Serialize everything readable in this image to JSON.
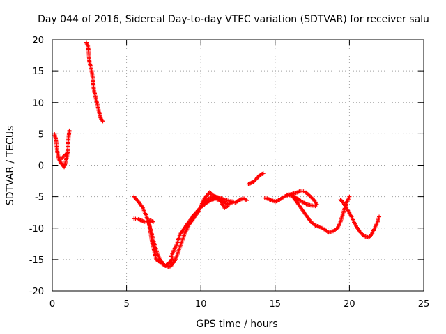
{
  "chart_data": {
    "type": "scatter",
    "title": "Day 044 of 2016, Sidereal Day-to-day VTEC variation (SDTVAR) for receiver salu",
    "xlabel": "GPS time / hours",
    "ylabel": "SDTVAR / TECUs",
    "xlim": [
      0,
      25
    ],
    "ylim": [
      -20,
      20
    ],
    "xticks": [
      0,
      5,
      10,
      15,
      20,
      25
    ],
    "yticks": [
      -20,
      -15,
      -10,
      -5,
      0,
      5,
      10,
      15,
      20
    ],
    "grid": true,
    "marker": "+",
    "marker_color": "#ff0000",
    "series": [
      {
        "name": "SDTVAR",
        "segments": [
          [
            [
              0.15,
              5.0
            ],
            [
              0.25,
              4.0
            ],
            [
              0.3,
              3.0
            ],
            [
              0.35,
              2.0
            ],
            [
              0.45,
              1.0
            ],
            [
              0.55,
              0.5
            ],
            [
              0.7,
              0.0
            ],
            [
              0.8,
              -0.3
            ],
            [
              0.9,
              0.5
            ],
            [
              1.0,
              1.5
            ],
            [
              1.05,
              3.0
            ],
            [
              1.1,
              4.5
            ],
            [
              1.15,
              5.5
            ]
          ],
          [
            [
              0.4,
              1.0
            ],
            [
              0.6,
              1.0
            ],
            [
              0.8,
              1.5
            ],
            [
              0.95,
              1.8
            ],
            [
              1.05,
              2.0
            ]
          ],
          [
            [
              2.3,
              19.5
            ],
            [
              2.4,
              19.0
            ],
            [
              2.45,
              18.0
            ],
            [
              2.5,
              16.5
            ],
            [
              2.65,
              15.0
            ],
            [
              2.75,
              13.5
            ],
            [
              2.8,
              12.0
            ],
            [
              2.9,
              11.0
            ],
            [
              3.0,
              10.0
            ],
            [
              3.1,
              9.0
            ],
            [
              3.2,
              8.0
            ],
            [
              3.3,
              7.3
            ],
            [
              3.4,
              7.0
            ]
          ],
          [
            [
              5.5,
              -5.0
            ],
            [
              5.8,
              -5.8
            ],
            [
              6.1,
              -6.8
            ],
            [
              6.4,
              -8.5
            ],
            [
              6.6,
              -10.0
            ],
            [
              6.8,
              -12.0
            ],
            [
              7.0,
              -13.5
            ],
            [
              7.2,
              -14.8
            ],
            [
              7.5,
              -15.8
            ],
            [
              7.8,
              -16.2
            ],
            [
              8.0,
              -16.0
            ],
            [
              8.3,
              -15.0
            ],
            [
              8.6,
              -13.0
            ],
            [
              8.9,
              -11.0
            ],
            [
              9.2,
              -9.5
            ],
            [
              9.5,
              -8.5
            ],
            [
              9.8,
              -7.5
            ],
            [
              10.0,
              -6.5
            ],
            [
              10.2,
              -5.5
            ],
            [
              10.4,
              -4.8
            ],
            [
              10.6,
              -4.3
            ],
            [
              10.8,
              -4.8
            ],
            [
              11.0,
              -5.0
            ],
            [
              11.3,
              -5.2
            ],
            [
              11.6,
              -5.5
            ],
            [
              11.9,
              -5.7
            ],
            [
              12.2,
              -5.8
            ]
          ],
          [
            [
              5.5,
              -8.5
            ],
            [
              5.8,
              -8.6
            ],
            [
              6.0,
              -8.8
            ],
            [
              6.2,
              -9.0
            ],
            [
              6.4,
              -9.0
            ],
            [
              6.6,
              -8.8
            ],
            [
              6.8,
              -9.0
            ]
          ],
          [
            [
              6.5,
              -9.0
            ],
            [
              6.6,
              -10.5
            ],
            [
              6.7,
              -12.0
            ],
            [
              6.8,
              -13.0
            ],
            [
              6.9,
              -14.0
            ],
            [
              7.0,
              -15.0
            ],
            [
              7.3,
              -15.5
            ],
            [
              7.6,
              -16.0
            ],
            [
              7.9,
              -15.5
            ],
            [
              8.1,
              -14.8
            ]
          ],
          [
            [
              8.0,
              -14.5
            ],
            [
              8.2,
              -13.5
            ],
            [
              8.4,
              -12.5
            ],
            [
              8.6,
              -11.0
            ],
            [
              8.9,
              -10.0
            ],
            [
              9.2,
              -9.0
            ],
            [
              9.5,
              -8.0
            ],
            [
              9.8,
              -7.2
            ],
            [
              10.1,
              -6.5
            ],
            [
              10.4,
              -6.0
            ],
            [
              10.7,
              -5.5
            ],
            [
              11.0,
              -5.3
            ],
            [
              11.4,
              -5.8
            ],
            [
              11.8,
              -6.2
            ],
            [
              12.1,
              -6.0
            ]
          ],
          [
            [
              10.0,
              -6.5
            ],
            [
              10.3,
              -5.8
            ],
            [
              10.6,
              -5.2
            ],
            [
              10.9,
              -5.0
            ],
            [
              11.2,
              -5.2
            ],
            [
              11.4,
              -6.0
            ],
            [
              11.6,
              -6.8
            ],
            [
              11.8,
              -6.5
            ]
          ],
          [
            [
              12.3,
              -6.0
            ],
            [
              12.6,
              -5.5
            ],
            [
              12.9,
              -5.3
            ],
            [
              13.1,
              -5.6
            ]
          ],
          [
            [
              13.2,
              -3.0
            ],
            [
              13.4,
              -2.8
            ],
            [
              13.6,
              -2.5
            ],
            [
              13.8,
              -2.0
            ],
            [
              14.0,
              -1.5
            ],
            [
              14.2,
              -1.3
            ]
          ],
          [
            [
              14.3,
              -5.2
            ],
            [
              14.7,
              -5.5
            ],
            [
              15.0,
              -5.8
            ],
            [
              15.3,
              -5.5
            ],
            [
              15.6,
              -5.0
            ],
            [
              15.9,
              -4.7
            ],
            [
              16.2,
              -4.9
            ],
            [
              16.5,
              -5.3
            ],
            [
              16.8,
              -5.8
            ],
            [
              17.1,
              -6.2
            ],
            [
              17.4,
              -6.4
            ],
            [
              17.7,
              -6.5
            ]
          ],
          [
            [
              15.8,
              -4.7
            ],
            [
              16.1,
              -4.6
            ],
            [
              16.4,
              -4.4
            ],
            [
              16.7,
              -4.1
            ],
            [
              17.0,
              -4.2
            ],
            [
              17.3,
              -4.8
            ],
            [
              17.6,
              -5.5
            ],
            [
              17.8,
              -6.2
            ]
          ],
          [
            [
              16.2,
              -5.0
            ],
            [
              16.5,
              -6.0
            ],
            [
              16.8,
              -7.0
            ],
            [
              17.1,
              -8.0
            ],
            [
              17.4,
              -9.0
            ],
            [
              17.7,
              -9.6
            ],
            [
              18.0,
              -9.8
            ],
            [
              18.3,
              -10.2
            ],
            [
              18.6,
              -10.7
            ],
            [
              18.9,
              -10.5
            ],
            [
              19.2,
              -10.0
            ],
            [
              19.4,
              -9.0
            ],
            [
              19.6,
              -7.5
            ],
            [
              19.8,
              -6.0
            ],
            [
              20.0,
              -5.0
            ]
          ],
          [
            [
              19.4,
              -5.5
            ],
            [
              19.6,
              -6.0
            ],
            [
              19.8,
              -6.8
            ],
            [
              20.1,
              -8.0
            ],
            [
              20.4,
              -9.5
            ],
            [
              20.7,
              -10.6
            ],
            [
              21.0,
              -11.3
            ],
            [
              21.3,
              -11.5
            ],
            [
              21.5,
              -11.0
            ],
            [
              21.7,
              -10.0
            ],
            [
              21.9,
              -9.0
            ],
            [
              22.0,
              -8.2
            ]
          ]
        ]
      }
    ]
  }
}
